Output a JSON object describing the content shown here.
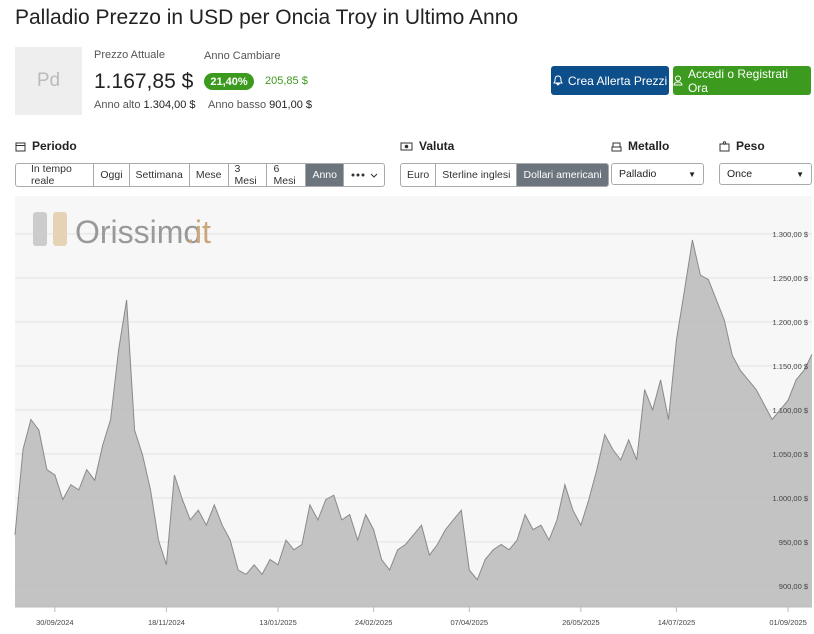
{
  "header": {
    "title": "Palladio Prezzo in USD per Oncia Troy in Ultimo Anno"
  },
  "price": {
    "logo": "Pd",
    "current_label": "Prezzo Attuale",
    "current": "1.167,85 $",
    "change_label": "Anno Cambiare",
    "change_pct": "21,40%",
    "change_abs": "205,85 $",
    "high_label": "Anno alto",
    "high": "1.304,00 $",
    "low_label": "Anno basso",
    "low": "901,00 $"
  },
  "buttons": [
    "Crea Allerta Prezzi",
    "Accedi o Registrati Ora"
  ],
  "filters": {
    "period": {
      "label": "Periodo",
      "options": [
        "In tempo reale",
        "Oggi",
        "Settimana",
        "Mese",
        "3 Mesi",
        "6 Mesi",
        "Anno"
      ],
      "selected": 6
    },
    "currency": {
      "label": "Valuta",
      "options": [
        "Euro",
        "Sterline inglesi",
        "Dollari americani"
      ],
      "selected": 2
    },
    "metal": {
      "label": "Metallo",
      "value": "Palladio"
    },
    "weight": {
      "label": "Peso",
      "value": "Once"
    }
  },
  "watermark": [
    "Orissimo",
    ".it"
  ],
  "chart_data": {
    "type": "area",
    "color": "#bdbdbd",
    "line_color": "#8a8a8a",
    "grid": true,
    "categories": [
      null,
      null,
      null,
      null,
      null,
      "30/09/2024",
      null,
      null,
      null,
      null,
      null,
      null,
      null,
      null,
      null,
      null,
      null,
      null,
      null,
      "18/11/2024",
      null,
      null,
      null,
      null,
      null,
      null,
      null,
      null,
      null,
      null,
      null,
      null,
      null,
      "13/01/2025",
      null,
      null,
      null,
      null,
      null,
      null,
      null,
      null,
      null,
      null,
      null,
      "24/02/2025",
      null,
      null,
      null,
      null,
      null,
      null,
      null,
      null,
      null,
      null,
      null,
      "07/04/2025",
      null,
      null,
      null,
      null,
      null,
      null,
      null,
      null,
      null,
      null,
      null,
      null,
      null,
      "26/05/2025",
      null,
      null,
      null,
      null,
      null,
      null,
      null,
      null,
      null,
      null,
      null,
      "14/07/2025",
      null,
      null,
      null,
      null,
      null,
      null,
      null,
      null,
      null,
      null,
      null,
      null,
      null,
      "01/09/2025",
      null,
      null,
      null
    ],
    "values": [
      958,
      1055,
      1089,
      1077,
      1032,
      1026,
      998,
      1015,
      1009,
      1032,
      1020,
      1060,
      1089,
      1168,
      1225,
      1077,
      1049,
      1009,
      952,
      924,
      1026,
      998,
      975,
      986,
      969,
      992,
      969,
      952,
      918,
      913,
      924,
      913,
      930,
      924,
      952,
      941,
      947,
      992,
      975,
      998,
      1003,
      975,
      981,
      952,
      981,
      964,
      930,
      918,
      941,
      947,
      958,
      969,
      935,
      947,
      964,
      975,
      986,
      918,
      907,
      930,
      941,
      947,
      941,
      952,
      981,
      964,
      969,
      952,
      975,
      1015,
      986,
      969,
      998,
      1032,
      1072,
      1055,
      1043,
      1066,
      1043,
      1123,
      1100,
      1134,
      1089,
      1180,
      1236,
      1293,
      1253,
      1248,
      1225,
      1202,
      1162,
      1145,
      1134,
      1123,
      1106,
      1089,
      1100,
      1111,
      1134,
      1145,
      1163
    ],
    "ylim": [
      876,
      1343
    ],
    "yticks": [
      {
        "value": 900,
        "label": "900,00 $"
      },
      {
        "value": 950,
        "label": "950,00 $"
      },
      {
        "value": 1000,
        "label": "1.000,00 $"
      },
      {
        "value": 1050,
        "label": "1.050,00 $"
      },
      {
        "value": 1100,
        "label": "1.100,00 $"
      },
      {
        "value": 1150,
        "label": "1.150,00 $"
      },
      {
        "value": 1200,
        "label": "1.200,00 $"
      },
      {
        "value": 1250,
        "label": "1.250,00 $"
      },
      {
        "value": 1300,
        "label": "1.300,00 $"
      }
    ]
  }
}
